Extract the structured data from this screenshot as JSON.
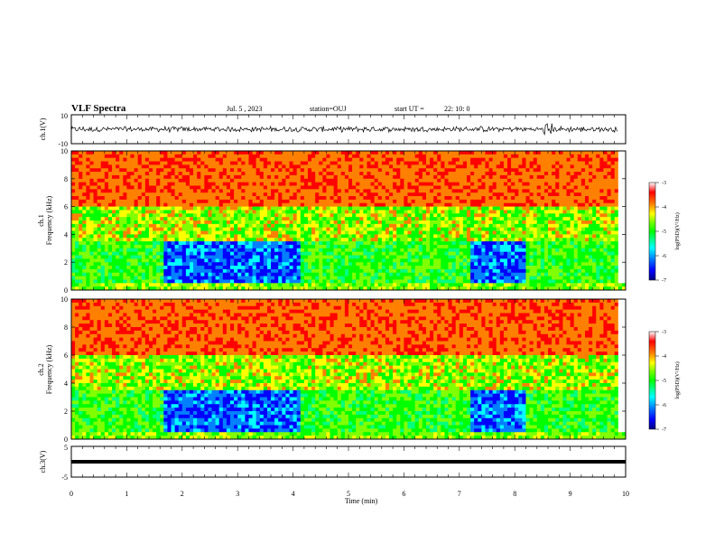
{
  "header": {
    "title": "VLF Spectra",
    "date": "Jul. 5 , 2023",
    "station": "station=OUJ",
    "start_label": "start UT =",
    "start_time": "22: 10: 0"
  },
  "colorbar": {
    "label": "log(PSD)(V²/Hz)",
    "ticks": [
      "-3",
      "-4",
      "-5",
      "-6",
      "-7"
    ],
    "colors": [
      "#000080",
      "#0000ff",
      "#0080ff",
      "#00ffff",
      "#00ff80",
      "#00ff00",
      "#80ff00",
      "#ffff00",
      "#ff8000",
      "#ff0000",
      "#ffffff"
    ]
  },
  "chart_data": [
    {
      "type": "line",
      "name": "ch1-waveform",
      "ylabel": "ch.1(V)",
      "ylim": [
        -10,
        10
      ],
      "yticks": [
        "10",
        "-10"
      ],
      "xlim": [
        0,
        10
      ],
      "note_series": "noisy waveform, amplitude mostly within ±2 V, burst near 8.6 min"
    },
    {
      "type": "heatmap",
      "name": "ch1-spectrogram",
      "ylabel": "ch.1 Frequency (kHz)",
      "ylim": [
        0,
        10
      ],
      "yticks": [
        "10",
        "8",
        "6",
        "4",
        "2",
        "0"
      ],
      "xlim": [
        0,
        10
      ],
      "zlabel": "log(PSD)(V²/Hz)",
      "zlim": [
        -7,
        -3
      ],
      "low_power_intervals_min": [
        [
          1.7,
          4.1
        ],
        [
          7.2,
          8.2
        ]
      ]
    },
    {
      "type": "heatmap",
      "name": "ch2-spectrogram",
      "ylabel": "ch.2 Frequency (kHz)",
      "ylim": [
        0,
        10
      ],
      "yticks": [
        "10",
        "8",
        "6",
        "4",
        "2",
        "0"
      ],
      "xlim": [
        0,
        10
      ],
      "zlabel": "log(PSD)(V²/Hz)",
      "zlim": [
        -7,
        -3
      ],
      "low_power_intervals_min": [
        [
          1.7,
          4.1
        ],
        [
          7.2,
          8.2
        ]
      ]
    },
    {
      "type": "line",
      "name": "ch3-waveform",
      "ylabel": "ch.3(V)",
      "ylim": [
        -5,
        5
      ],
      "yticks": [
        "5",
        "-5"
      ],
      "xlim": [
        0,
        10
      ],
      "note_series": "flat line at about -1 V"
    }
  ],
  "xaxis": {
    "label": "Time (min)",
    "ticks": [
      "0",
      "1",
      "2",
      "3",
      "4",
      "5",
      "6",
      "7",
      "8",
      "9",
      "10"
    ]
  }
}
